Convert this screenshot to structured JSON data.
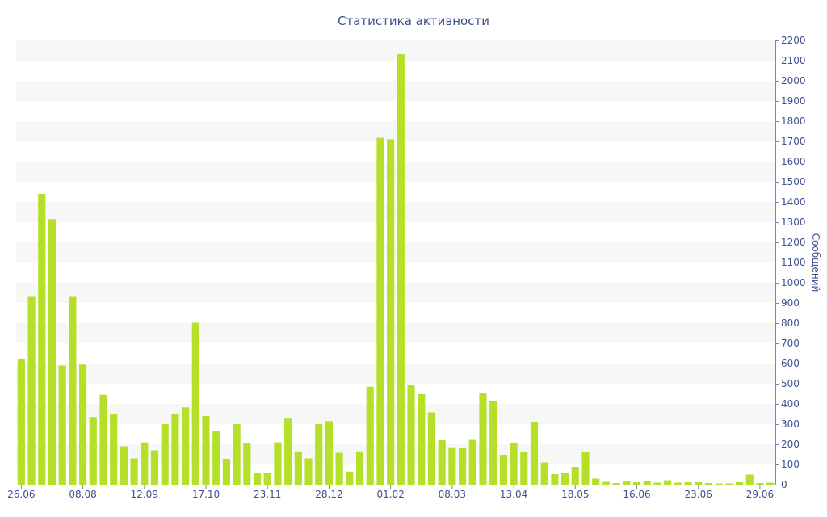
{
  "chart_data": {
    "type": "bar",
    "title": "Статистика активности",
    "ylabel": "Сообщений",
    "ylim": [
      0,
      2200
    ],
    "y_ticks": [
      0,
      100,
      200,
      300,
      400,
      500,
      600,
      700,
      800,
      900,
      1000,
      1100,
      1200,
      1300,
      1400,
      1500,
      1600,
      1700,
      1800,
      1900,
      2000,
      2100,
      2200
    ],
    "y_axis_side": "right",
    "grid": "alternating horizontal bands",
    "x_tick_labels": [
      {
        "index": 0,
        "label": "26.06"
      },
      {
        "index": 6,
        "label": "08.08"
      },
      {
        "index": 12,
        "label": "12.09"
      },
      {
        "index": 18,
        "label": "17.10"
      },
      {
        "index": 24,
        "label": "23.11"
      },
      {
        "index": 30,
        "label": "28.12"
      },
      {
        "index": 36,
        "label": "01.02"
      },
      {
        "index": 42,
        "label": "08.03"
      },
      {
        "index": 48,
        "label": "13.04"
      },
      {
        "index": 54,
        "label": "18.05"
      },
      {
        "index": 60,
        "label": "16.06"
      },
      {
        "index": 66,
        "label": "23.06"
      },
      {
        "index": 72,
        "label": "29.06"
      }
    ],
    "values": [
      620,
      930,
      1440,
      1315,
      590,
      930,
      595,
      335,
      445,
      350,
      190,
      130,
      210,
      170,
      300,
      348,
      383,
      802,
      340,
      265,
      128,
      300,
      207,
      58,
      58,
      210,
      327,
      165,
      130,
      300,
      315,
      158,
      65,
      165,
      485,
      1718,
      1710,
      2132,
      495,
      448,
      358,
      220,
      185,
      182,
      222,
      452,
      412,
      148,
      208,
      160,
      312,
      110,
      52,
      60,
      88,
      162,
      30,
      14,
      8,
      18,
      12,
      20,
      10,
      22,
      10,
      12,
      12,
      8,
      6,
      6,
      12,
      50,
      8,
      10
    ],
    "colors": {
      "bar": "#b5e02a",
      "text": "#3d4f8f",
      "band": "#f7f7f7",
      "axis": "#7a86b8"
    }
  }
}
